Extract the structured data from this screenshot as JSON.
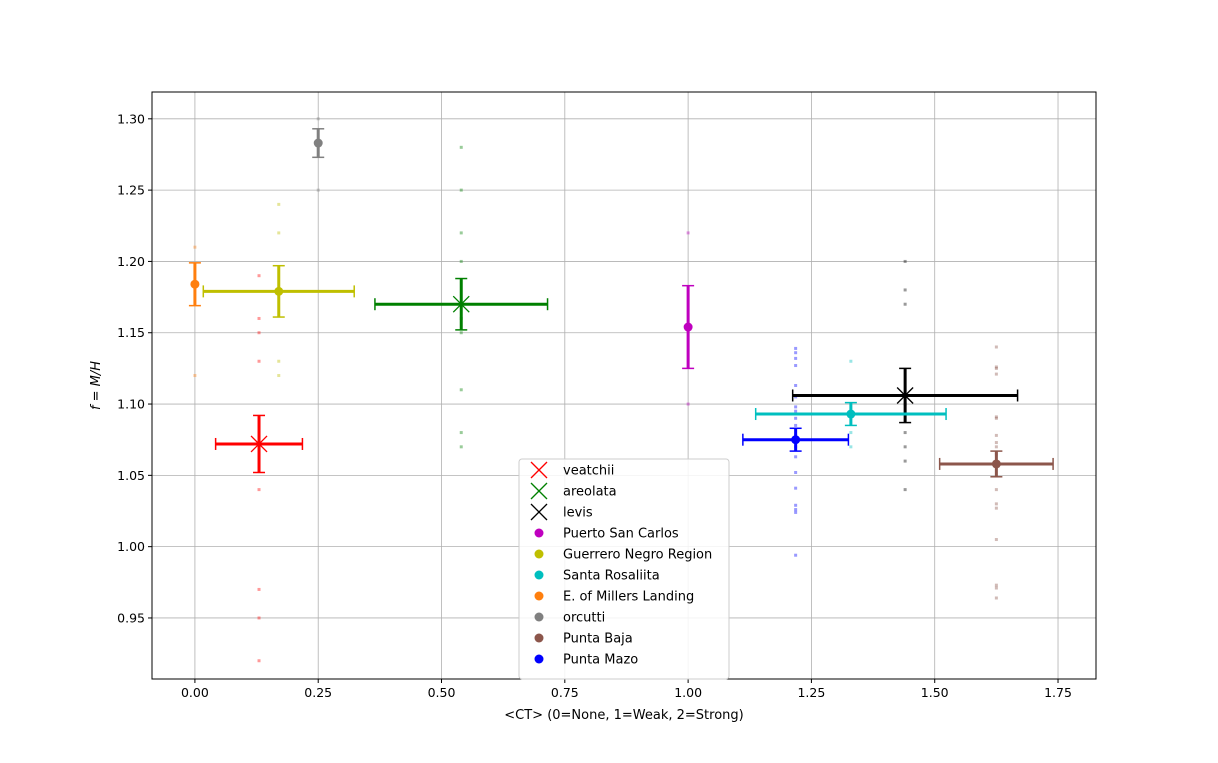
{
  "chart_data": {
    "type": "scatter",
    "title": "",
    "xlabel": "<CT> (0=None, 1=Weak, 2=Strong)",
    "ylabel": "f = M/H",
    "xlim": [
      -0.087,
      1.827
    ],
    "ylim": [
      0.9072,
      1.3188
    ],
    "xticks": [
      0.0,
      0.25,
      0.5,
      0.75,
      1.0,
      1.25,
      1.5,
      1.75
    ],
    "yticks": [
      0.95,
      1.0,
      1.05,
      1.1,
      1.15,
      1.2,
      1.25,
      1.3
    ],
    "grid": true,
    "legend_position": "bottom-center",
    "series": [
      {
        "name": "veatchii",
        "color": "#ff0000",
        "marker": "x",
        "legend_color": "#ff0000",
        "mean": {
          "x": 0.13,
          "y": 1.072,
          "xerr": 0.088,
          "yerr": 0.02
        },
        "points": [
          [
            0.13,
            0.92
          ],
          [
            0.13,
            0.95
          ],
          [
            0.13,
            0.97
          ],
          [
            0.13,
            1.04
          ],
          [
            0.13,
            1.13
          ],
          [
            0.13,
            1.15
          ],
          [
            0.13,
            1.16
          ],
          [
            0.13,
            1.19
          ]
        ]
      },
      {
        "name": "areolata",
        "color": "#008000",
        "marker": "x",
        "legend_color": "#008000",
        "mean": {
          "x": 0.54,
          "y": 1.17,
          "xerr": 0.175,
          "yerr": 0.018
        },
        "points": [
          [
            0.54,
            1.07
          ],
          [
            0.54,
            1.08
          ],
          [
            0.54,
            1.11
          ],
          [
            0.54,
            1.15
          ],
          [
            0.54,
            1.16
          ],
          [
            0.54,
            1.2
          ],
          [
            0.54,
            1.22
          ],
          [
            0.54,
            1.25
          ],
          [
            0.54,
            1.28
          ]
        ]
      },
      {
        "name": "levis",
        "color": "#000000",
        "marker": "x",
        "legend_color": "#000000",
        "mean": {
          "x": 1.44,
          "y": 1.106,
          "xerr": 0.228,
          "yerr": 0.019
        },
        "points": [
          [
            1.44,
            1.04
          ],
          [
            1.44,
            1.06
          ],
          [
            1.44,
            1.07
          ],
          [
            1.44,
            1.08
          ],
          [
            1.44,
            1.1
          ],
          [
            1.44,
            1.17
          ],
          [
            1.44,
            1.18
          ],
          [
            1.44,
            1.2
          ]
        ]
      },
      {
        "name": "Puerto San Carlos",
        "color": "#bf00bf",
        "marker": "o",
        "legend_color": "#bf00bf",
        "mean": {
          "x": 1.0,
          "y": 1.154,
          "xerr": 0,
          "yerr": 0.029
        },
        "points": [
          [
            1.0,
            1.1
          ],
          [
            1.0,
            1.22
          ]
        ]
      },
      {
        "name": "Guerrero Negro Region",
        "color": "#bfbf00",
        "marker": "o",
        "legend_color": "#bfbf00",
        "mean": {
          "x": 0.17,
          "y": 1.179,
          "xerr": 0.153,
          "yerr": 0.018
        },
        "points": [
          [
            0.17,
            1.12
          ],
          [
            0.17,
            1.13
          ],
          [
            0.17,
            1.22
          ],
          [
            0.17,
            1.24
          ]
        ]
      },
      {
        "name": "Santa Rosaliita",
        "color": "#00bfbf",
        "marker": "o",
        "legend_color": "#00bfbf",
        "mean": {
          "x": 1.33,
          "y": 1.093,
          "xerr": 0.193,
          "yerr": 0.008
        },
        "points": [
          [
            1.33,
            1.07
          ],
          [
            1.33,
            1.08
          ],
          [
            1.33,
            1.13
          ]
        ]
      },
      {
        "name": "E. of Millers Landing",
        "color": "#ff7f0e",
        "marker": "o",
        "legend_color": "#ff7f0e",
        "mean": {
          "x": 0.0,
          "y": 1.184,
          "xerr": 0.0,
          "yerr": 0.015
        },
        "points": [
          [
            0.0,
            1.12
          ],
          [
            0.0,
            1.21
          ]
        ]
      },
      {
        "name": "orcutti",
        "color": "#808080",
        "marker": "o",
        "legend_color": "#808080",
        "mean": {
          "x": 0.25,
          "y": 1.283,
          "xerr": 0,
          "yerr": 0.01
        },
        "points": [
          [
            0.25,
            1.25
          ],
          [
            0.25,
            1.3
          ]
        ]
      },
      {
        "name": "Punta Baja",
        "color": "#8c564b",
        "marker": "o",
        "legend_color": "#8c564b",
        "mean": {
          "x": 1.625,
          "y": 1.058,
          "xerr": 0.115,
          "yerr": 0.009
        },
        "points": [
          [
            1.625,
            0.964
          ],
          [
            1.625,
            0.971
          ],
          [
            1.625,
            0.973
          ],
          [
            1.625,
            1.005
          ],
          [
            1.625,
            1.027
          ],
          [
            1.625,
            1.03
          ],
          [
            1.625,
            1.04
          ],
          [
            1.625,
            1.058
          ],
          [
            1.625,
            1.065
          ],
          [
            1.625,
            1.07
          ],
          [
            1.625,
            1.073
          ],
          [
            1.625,
            1.078
          ],
          [
            1.625,
            1.09
          ],
          [
            1.625,
            1.091
          ],
          [
            1.625,
            1.121
          ],
          [
            1.625,
            1.125
          ],
          [
            1.625,
            1.126
          ],
          [
            1.625,
            1.14
          ]
        ]
      },
      {
        "name": "Punta Mazo",
        "color": "#0000ff",
        "marker": "o",
        "legend_color": "#0000ff",
        "mean": {
          "x": 1.218,
          "y": 1.075,
          "xerr": 0.107,
          "yerr": 0.008
        },
        "points": [
          [
            1.218,
            0.994
          ],
          [
            1.218,
            1.024
          ],
          [
            1.218,
            1.026
          ],
          [
            1.218,
            1.029
          ],
          [
            1.218,
            1.041
          ],
          [
            1.218,
            1.052
          ],
          [
            1.218,
            1.063
          ],
          [
            1.218,
            1.07
          ],
          [
            1.218,
            1.078
          ],
          [
            1.218,
            1.085
          ],
          [
            1.218,
            1.09
          ],
          [
            1.218,
            1.095
          ],
          [
            1.218,
            1.098
          ],
          [
            1.218,
            1.105
          ],
          [
            1.218,
            1.113
          ],
          [
            1.218,
            1.127
          ],
          [
            1.218,
            1.132
          ],
          [
            1.218,
            1.136
          ],
          [
            1.218,
            1.139
          ]
        ]
      }
    ]
  }
}
